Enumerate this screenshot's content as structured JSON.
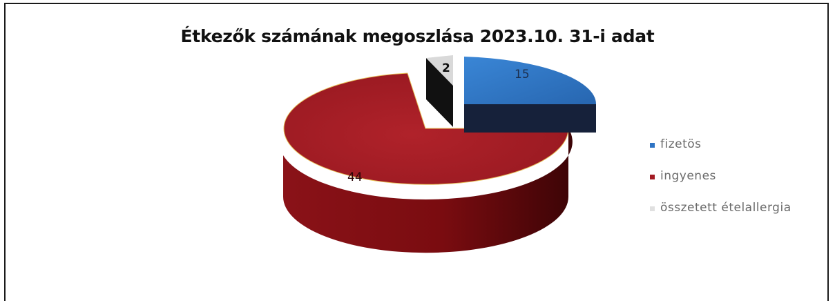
{
  "chart_data": {
    "type": "pie",
    "title": "Étkezők számának megoszlása 2023.10. 31-i adat",
    "categories": [
      "fizetös",
      "ingyenes",
      "összetett ételallergia"
    ],
    "values": [
      15,
      44,
      2
    ],
    "colors": [
      "#2e74c4",
      "#a31a22",
      "#e0e0e0"
    ],
    "data_labels": [
      "15",
      "44",
      "2"
    ],
    "legend_position": "right",
    "style": "3d-exploded"
  }
}
